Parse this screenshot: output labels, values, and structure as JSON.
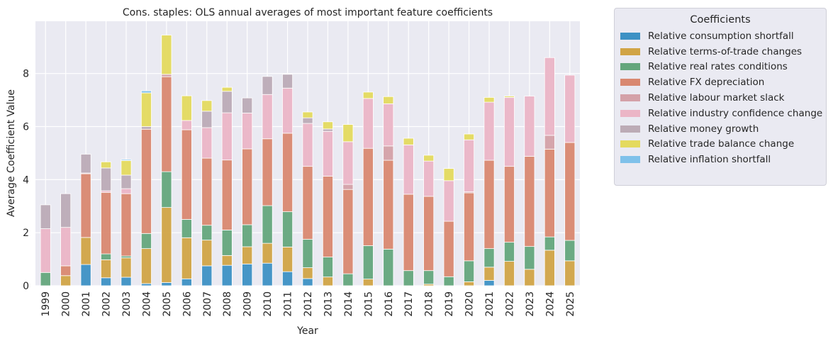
{
  "chart_data": {
    "type": "bar",
    "stacked": true,
    "title": "Cons. staples: OLS annual averages of most important feature coefficients",
    "xlabel": "Year",
    "ylabel": "Average Coefficient Value",
    "ylim": [
      0,
      9.97
    ],
    "yticks": [
      0,
      2,
      4,
      6,
      8
    ],
    "grid": true,
    "legend_title": "Coefficients",
    "legend_position": "outside-right",
    "categories": [
      "1999",
      "2000",
      "2001",
      "2002",
      "2003",
      "2004",
      "2005",
      "2006",
      "2007",
      "2008",
      "2009",
      "2010",
      "2011",
      "2012",
      "2013",
      "2014",
      "2015",
      "2016",
      "2017",
      "2018",
      "2019",
      "2020",
      "2021",
      "2022",
      "2023",
      "2024",
      "2025"
    ],
    "series": [
      {
        "name": "Relative consumption shortfall",
        "color": "#3d91c4",
        "values": [
          0,
          0,
          0.8,
          0.3,
          0.32,
          0.08,
          0.12,
          0.26,
          0.75,
          0.77,
          0.82,
          0.85,
          0.53,
          0.27,
          0,
          0,
          0,
          0,
          0,
          0,
          0,
          0,
          0.2,
          0,
          0,
          0,
          0
        ]
      },
      {
        "name": "Relative terms-of-trade changes",
        "color": "#d1a446",
        "values": [
          0,
          0.38,
          1.02,
          0.68,
          0.73,
          1.32,
          2.83,
          1.55,
          0.97,
          0.37,
          0.65,
          0.75,
          0.93,
          0.41,
          0.33,
          0,
          0.25,
          0,
          0,
          0.06,
          0,
          0.15,
          0.5,
          0.92,
          0.62,
          1.34,
          0.94
        ]
      },
      {
        "name": "Relative real rates conditions",
        "color": "#64a67c",
        "values": [
          0.5,
          0,
          0,
          0.22,
          0.07,
          0.57,
          1.35,
          0.69,
          0.56,
          0.96,
          0.83,
          1.42,
          1.33,
          1.07,
          0.75,
          0.45,
          1.26,
          1.38,
          0.57,
          0.51,
          0.34,
          0.79,
          0.7,
          0.72,
          0.86,
          0.5,
          0.77
        ]
      },
      {
        "name": "Relative FX depreciation",
        "color": "#d98870",
        "values": [
          0,
          0.37,
          2.4,
          2.32,
          2.35,
          3.93,
          3.58,
          3.38,
          2.53,
          2.64,
          2.86,
          2.52,
          2.96,
          2.75,
          3.05,
          3.18,
          3.67,
          3.35,
          2.88,
          2.8,
          2.09,
          2.56,
          3.33,
          2.86,
          3.4,
          3.31,
          3.69
        ]
      },
      {
        "name": "Relative labour market slack",
        "color": "#d4a1a8",
        "values": [
          0,
          0,
          0.03,
          0,
          0,
          0,
          0.09,
          0,
          0,
          0,
          0,
          0,
          0,
          0,
          0,
          0.19,
          0,
          0.54,
          0,
          0,
          0,
          0.04,
          0,
          0,
          0,
          0.52,
          0
        ]
      },
      {
        "name": "Relative industry confidence change",
        "color": "#ebb5c6",
        "values": [
          1.65,
          1.45,
          0,
          0.06,
          0.19,
          0,
          0,
          0.35,
          1.15,
          1.78,
          1.35,
          1.67,
          1.7,
          1.62,
          1.69,
          1.61,
          1.88,
          1.59,
          1.86,
          1.33,
          1.53,
          1.96,
          2.19,
          2.6,
          2.27,
          2.93,
          2.54
        ]
      },
      {
        "name": "Relative money growth",
        "color": "#bcabb6",
        "values": [
          0.9,
          1.27,
          0.71,
          0.86,
          0.51,
          0.1,
          0,
          0,
          0.62,
          0.81,
          0.57,
          0.68,
          0.52,
          0.21,
          0.09,
          0,
          0,
          0,
          0,
          0,
          0,
          0,
          0,
          0,
          0,
          0,
          0
        ]
      },
      {
        "name": "Relative trade balance change",
        "color": "#e4da5e",
        "values": [
          0,
          0,
          0,
          0.23,
          0.55,
          1.27,
          1.48,
          0.93,
          0.4,
          0.15,
          0,
          0,
          0,
          0.22,
          0.27,
          0.65,
          0.24,
          0.27,
          0.25,
          0.22,
          0.46,
          0.22,
          0.18,
          0.05,
          0,
          0,
          0
        ]
      },
      {
        "name": "Relative inflation shortfall",
        "color": "#7fc1ea",
        "values": [
          0,
          0,
          0,
          0,
          0.04,
          0.08,
          0,
          0,
          0,
          0,
          0,
          0,
          0,
          0,
          0,
          0,
          0,
          0,
          0,
          0,
          0,
          0,
          0,
          0,
          0,
          0,
          0
        ]
      }
    ]
  }
}
